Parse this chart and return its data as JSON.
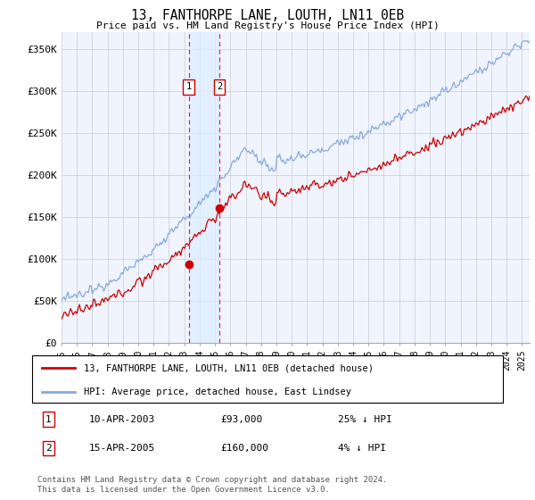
{
  "title": "13, FANTHORPE LANE, LOUTH, LN11 0EB",
  "subtitle": "Price paid vs. HM Land Registry's House Price Index (HPI)",
  "legend_line1": "13, FANTHORPE LANE, LOUTH, LN11 0EB (detached house)",
  "legend_line2": "HPI: Average price, detached house, East Lindsey",
  "footer": "Contains HM Land Registry data © Crown copyright and database right 2024.\nThis data is licensed under the Open Government Licence v3.0.",
  "transaction1_date": "10-APR-2003",
  "transaction1_price": "£93,000",
  "transaction1_hpi": "25% ↓ HPI",
  "transaction2_date": "15-APR-2005",
  "transaction2_price": "£160,000",
  "transaction2_hpi": "4% ↓ HPI",
  "hpi_color": "#88aadd",
  "price_color": "#cc0000",
  "vline_color": "#dd3333",
  "shade_color": "#ddeeff",
  "grid_color": "#cccccc",
  "bg_color": "#f0f4ff",
  "ylim": [
    0,
    370000
  ],
  "yticks": [
    0,
    50000,
    100000,
    150000,
    200000,
    250000,
    300000,
    350000
  ],
  "ytick_labels": [
    "£0",
    "£50K",
    "£100K",
    "£150K",
    "£200K",
    "£250K",
    "£300K",
    "£350K"
  ],
  "transaction1_x": 2003.28,
  "transaction1_y": 93000,
  "transaction2_x": 2005.29,
  "transaction2_y": 160000,
  "xmin": 1995,
  "xmax": 2025.5
}
